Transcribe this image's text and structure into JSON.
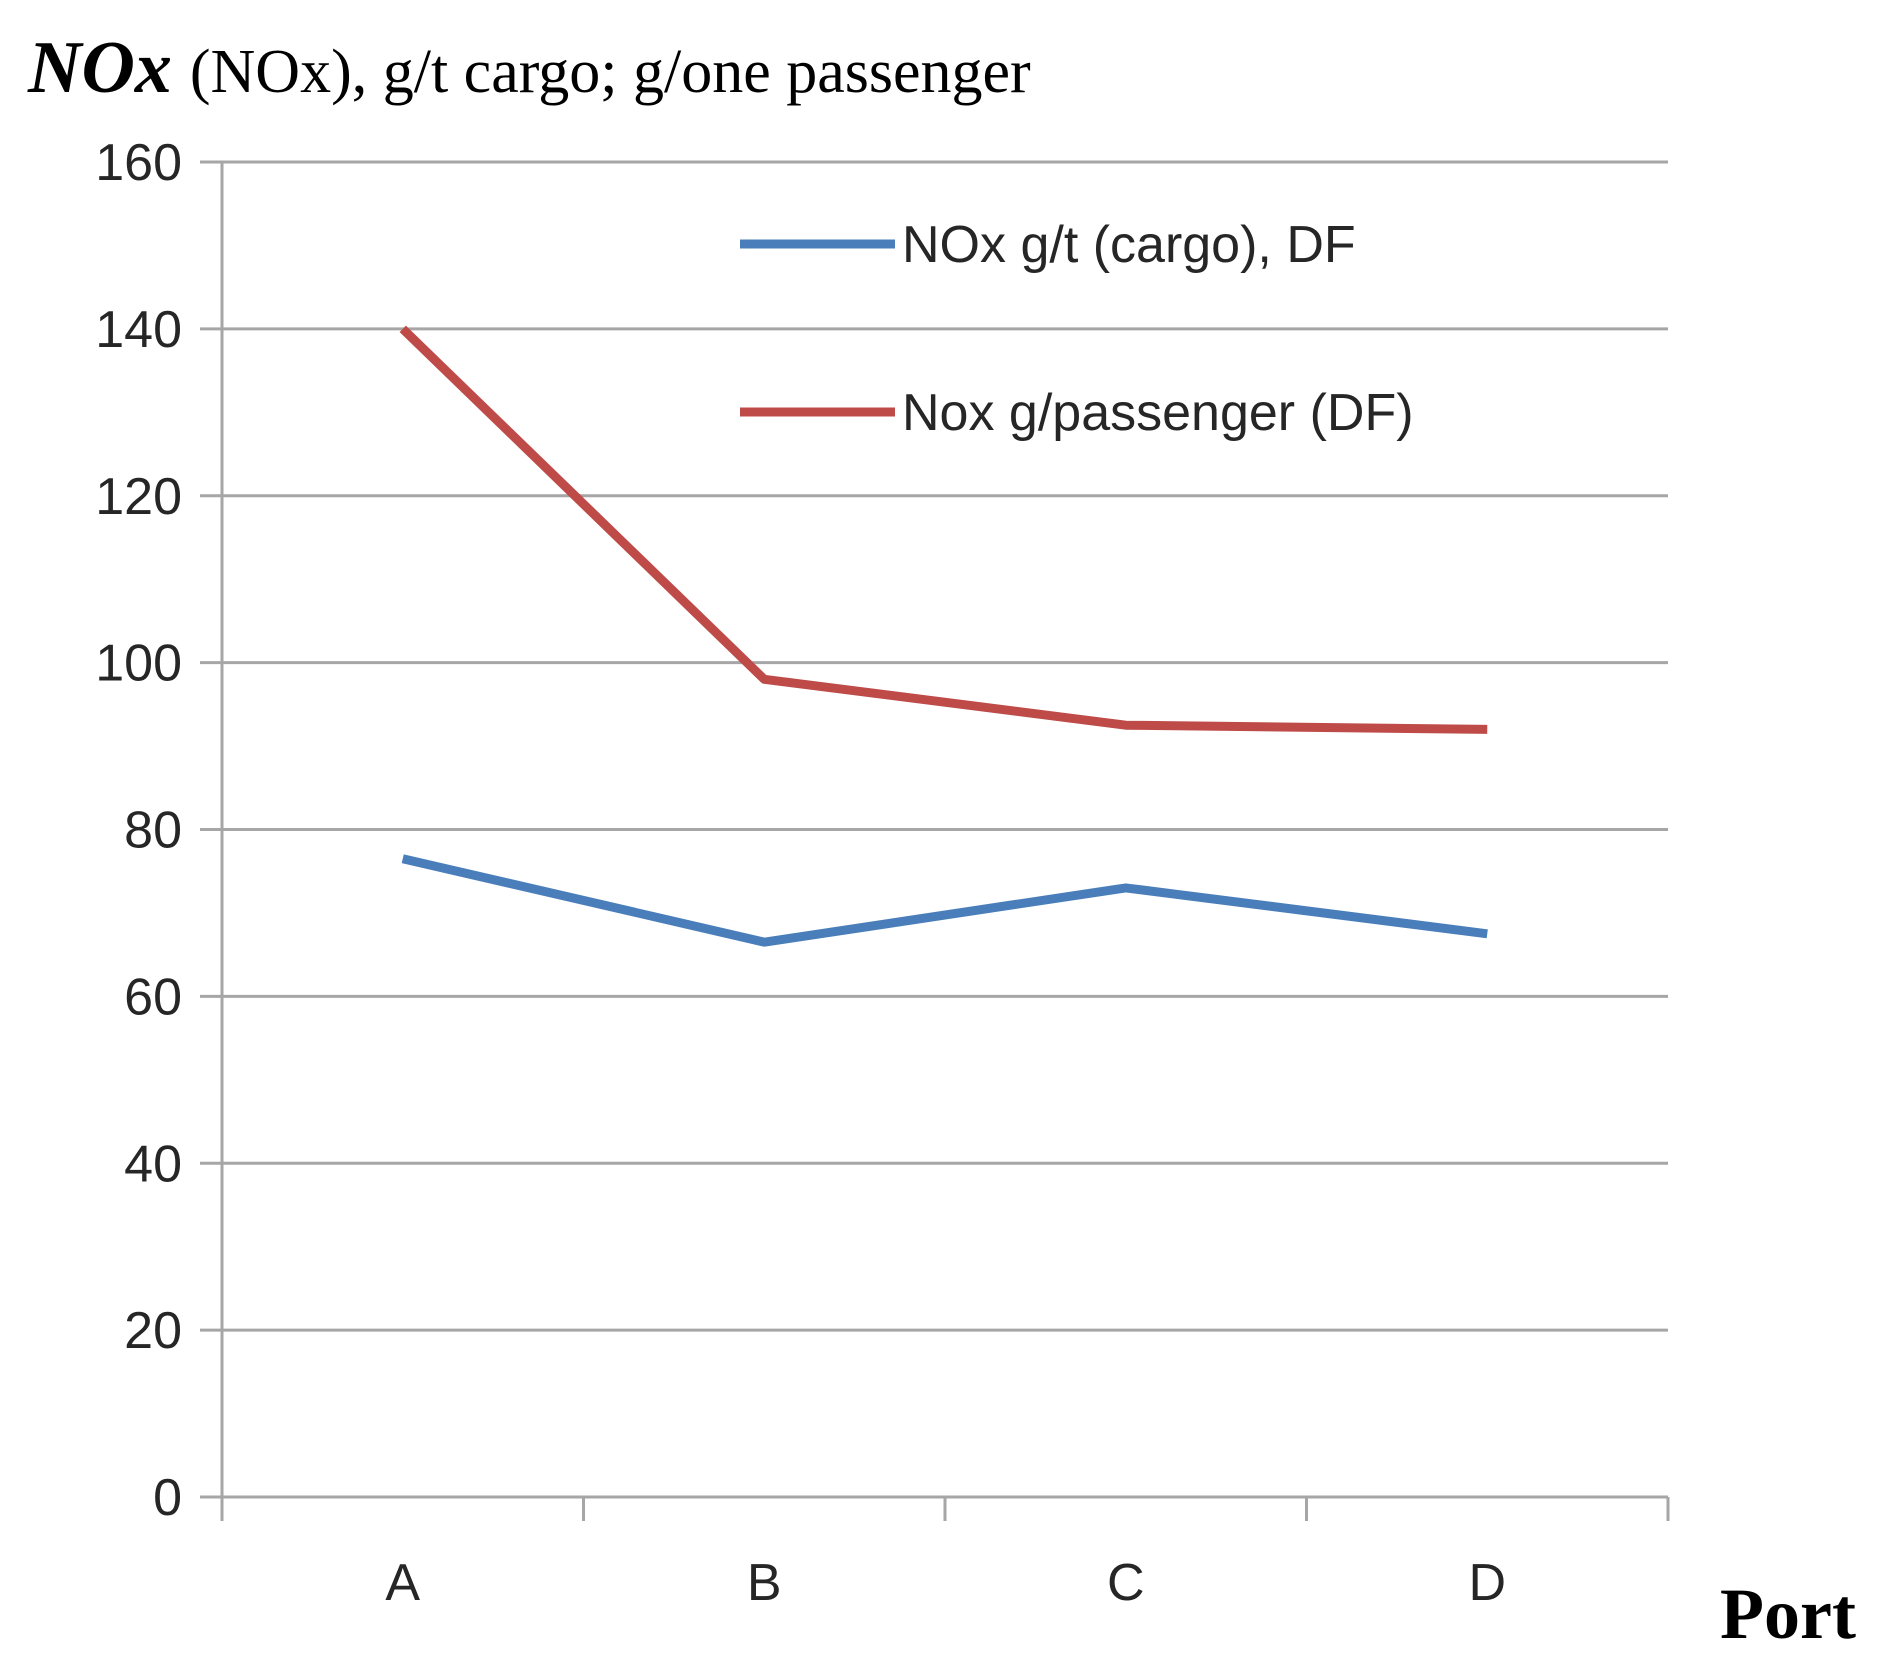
{
  "chart_data": {
    "type": "line",
    "title_symbol": "NOx",
    "title_rest": "(NOx), g/t cargo; g/one passenger",
    "xlabel": "Port",
    "ylabel": "",
    "categories": [
      "A",
      "B",
      "C",
      "D"
    ],
    "ylim": [
      0,
      160
    ],
    "yticks": [
      0,
      20,
      40,
      60,
      80,
      100,
      120,
      140,
      160
    ],
    "grid": true,
    "legend_position": "top-right",
    "series": [
      {
        "name": "NOx g/t (cargo), DF",
        "color": "#4a7ebb",
        "values": [
          76.5,
          66.5,
          73,
          67.5
        ]
      },
      {
        "name": "Nox g/passenger (DF)",
        "color": "#be4b48",
        "values": [
          140,
          98,
          92.5,
          92
        ]
      }
    ]
  }
}
